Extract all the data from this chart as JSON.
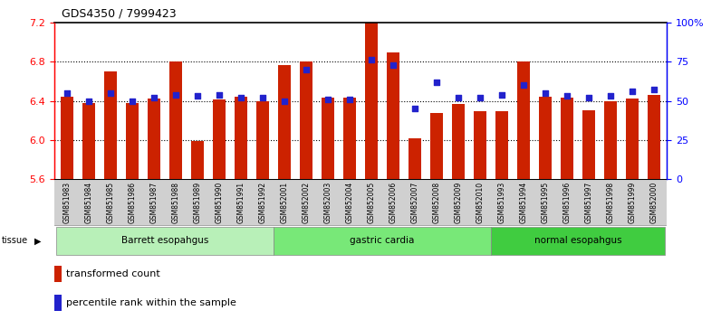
{
  "title": "GDS4350 / 7999423",
  "samples": [
    "GSM851983",
    "GSM851984",
    "GSM851985",
    "GSM851986",
    "GSM851987",
    "GSM851988",
    "GSM851989",
    "GSM851990",
    "GSM851991",
    "GSM851992",
    "GSM852001",
    "GSM852002",
    "GSM852003",
    "GSM852004",
    "GSM852005",
    "GSM852006",
    "GSM852007",
    "GSM852008",
    "GSM852009",
    "GSM852010",
    "GSM851993",
    "GSM851994",
    "GSM851995",
    "GSM851996",
    "GSM851997",
    "GSM851998",
    "GSM851999",
    "GSM852000"
  ],
  "red_values": [
    6.44,
    6.38,
    6.7,
    6.38,
    6.42,
    6.8,
    5.99,
    6.41,
    6.44,
    6.4,
    6.76,
    6.8,
    6.43,
    6.43,
    7.2,
    6.89,
    6.02,
    6.28,
    6.37,
    6.29,
    6.29,
    6.8,
    6.44,
    6.43,
    6.3,
    6.4,
    6.42,
    6.46
  ],
  "blue_values_pct": [
    55,
    50,
    55,
    50,
    52,
    54,
    53,
    54,
    52,
    52,
    50,
    70,
    51,
    51,
    76,
    73,
    45,
    62,
    52,
    52,
    54,
    60,
    55,
    53,
    52,
    53,
    56,
    57
  ],
  "groups": [
    {
      "label": "Barrett esopahgus",
      "start": 0,
      "end": 10,
      "color": "#b8f0b8"
    },
    {
      "label": "gastric cardia",
      "start": 10,
      "end": 20,
      "color": "#78e878"
    },
    {
      "label": "normal esopahgus",
      "start": 20,
      "end": 28,
      "color": "#40cc40"
    }
  ],
  "ylim_left": [
    5.6,
    7.2
  ],
  "ylim_right": [
    0,
    100
  ],
  "yticks_left": [
    5.6,
    6.0,
    6.4,
    6.8,
    7.2
  ],
  "yticks_right": [
    0,
    25,
    50,
    75,
    100
  ],
  "ytick_labels_right": [
    "0",
    "25",
    "50",
    "75",
    "100%"
  ],
  "bar_color": "#cc2200",
  "blue_color": "#2222cc",
  "bar_width": 0.6,
  "blue_marker_size": 5,
  "xlabel_bg_color": "#d0d0d0",
  "tissue_label_color": "#000000",
  "grid_yticks": [
    6.0,
    6.4,
    6.8
  ]
}
